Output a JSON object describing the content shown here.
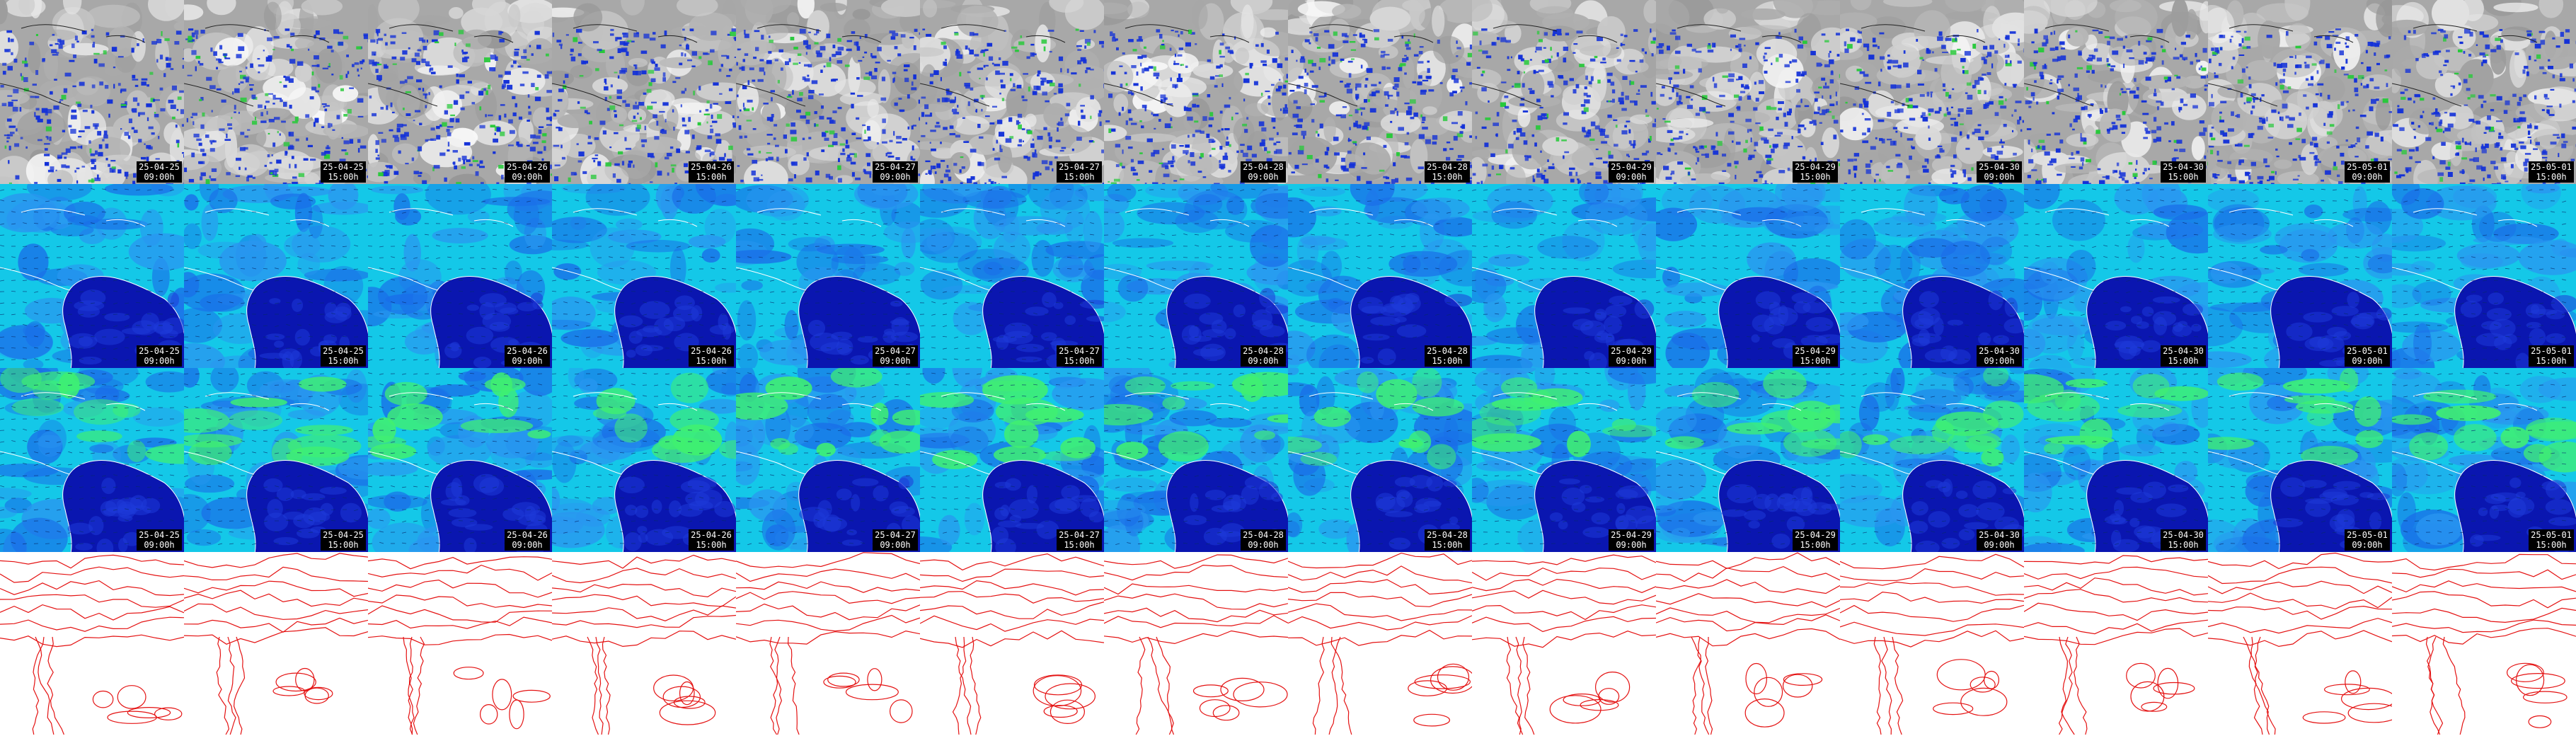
{
  "panels": {
    "columns": [
      {
        "date": "25-04-25",
        "time": "09:00h"
      },
      {
        "date": "25-04-25",
        "time": "15:00h"
      },
      {
        "date": "25-04-26",
        "time": "09:00h"
      },
      {
        "date": "25-04-26",
        "time": "15:00h"
      },
      {
        "date": "25-04-27",
        "time": "09:00h"
      },
      {
        "date": "25-04-27",
        "time": "15:00h"
      },
      {
        "date": "25-04-28",
        "time": "09:00h"
      },
      {
        "date": "25-04-28",
        "time": "15:00h"
      },
      {
        "date": "25-04-29",
        "time": "09:00h"
      },
      {
        "date": "25-04-29",
        "time": "15:00h"
      },
      {
        "date": "25-04-30",
        "time": "09:00h"
      },
      {
        "date": "25-04-30",
        "time": "15:00h"
      },
      {
        "date": "25-05-01",
        "time": "09:00h"
      },
      {
        "date": "25-05-01",
        "time": "15:00h"
      }
    ],
    "rows": [
      {
        "type": "cloud-precipitation",
        "stamp": true
      },
      {
        "type": "wind-low-level",
        "stamp": true
      },
      {
        "type": "wind-upper-level",
        "stamp": true
      },
      {
        "type": "pressure-contours",
        "stamp": false
      }
    ]
  },
  "colors": {
    "cloud_gray": "#9a9a9a",
    "precip_blue": "#1230d8",
    "precip_green": "#27c93a",
    "wind_cyan": "#14c8e8",
    "wind_deep": "#0a16b0",
    "wind_green": "#40f070",
    "contour_red": "#e41212",
    "coastline": "#ffffff"
  }
}
